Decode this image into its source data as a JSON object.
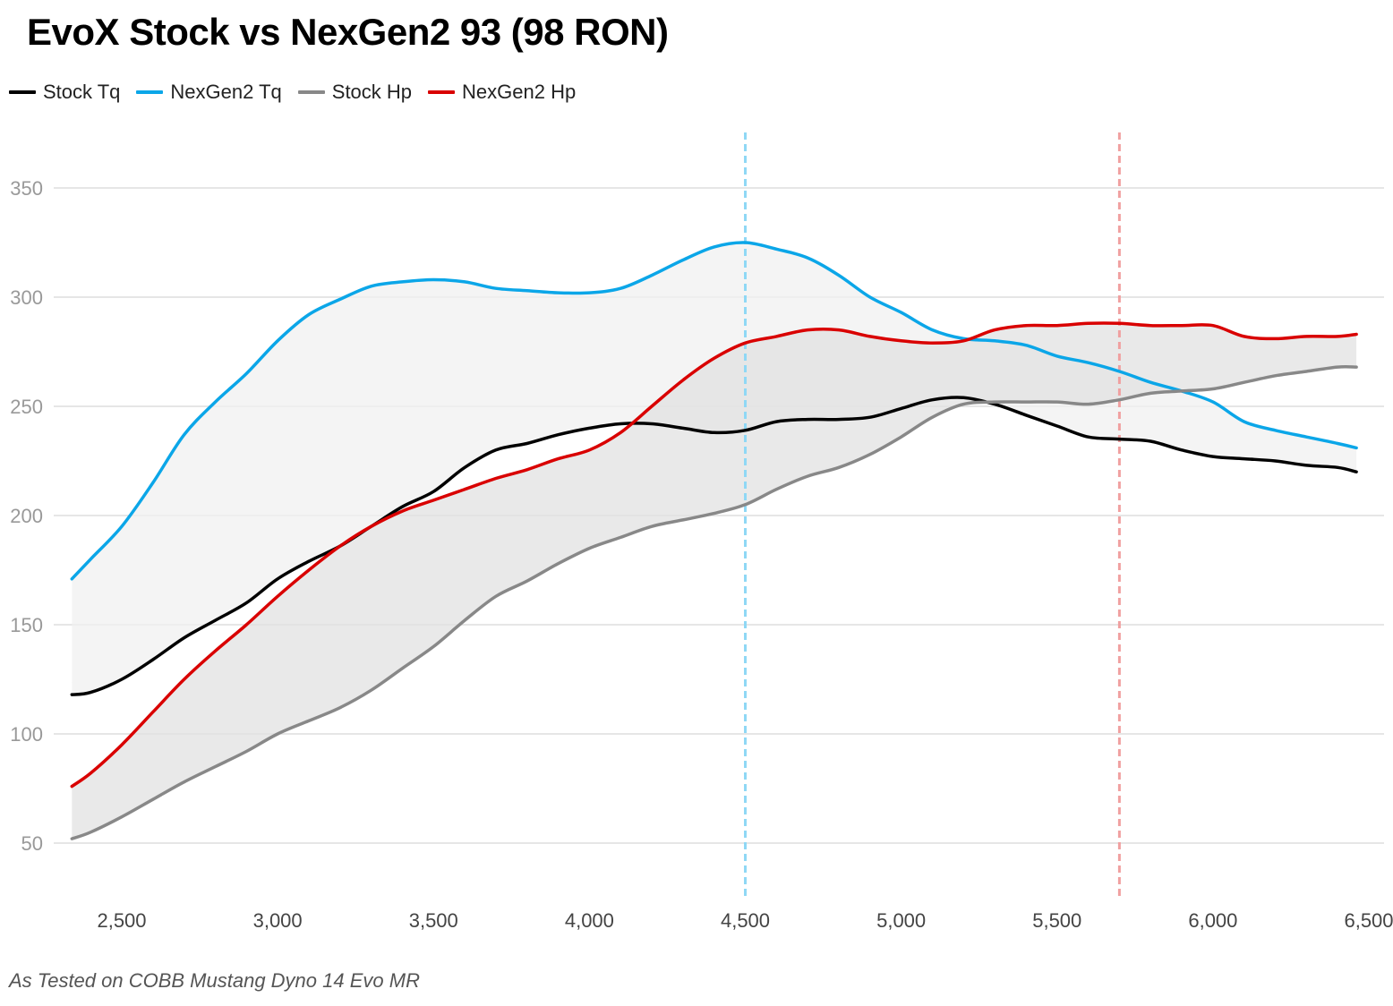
{
  "title": "EvoX Stock vs NexGen2 93 (98 RON)",
  "footer": "As Tested on COBB Mustang Dyno 14 Evo MR",
  "legend": [
    {
      "label": "Stock Tq",
      "color": "#000000"
    },
    {
      "label": "NexGen2 Tq",
      "color": "#0ba6e8"
    },
    {
      "label": "Stock Hp",
      "color": "#888888"
    },
    {
      "label": "NexGen2 Hp",
      "color": "#d90000"
    }
  ],
  "chart_data": {
    "type": "line",
    "title": "EvoX Stock vs NexGen2 93 (98 RON)",
    "xlabel": "",
    "ylabel": "",
    "xlim": [
      2330,
      6500
    ],
    "ylim": [
      20,
      375
    ],
    "x_ticks": [
      2500,
      3000,
      3500,
      4000,
      4500,
      5000,
      5500,
      6000,
      6500
    ],
    "x_tick_labels": [
      "2,500",
      "3,000",
      "3,500",
      "4,000",
      "4,500",
      "5,000",
      "5,500",
      "6,000",
      "6,500"
    ],
    "y_ticks": [
      50,
      100,
      150,
      200,
      250,
      300,
      350
    ],
    "y_tick_labels": [
      "50",
      "100",
      "150",
      "200",
      "250",
      "300",
      "350"
    ],
    "grid": "horizontal",
    "legend_position": "top-left",
    "shaded_bands": [
      {
        "between": [
          "NexGen2 Tq",
          "Stock Tq"
        ],
        "color": "#f0f0f0"
      },
      {
        "between": [
          "NexGen2 Hp",
          "Stock Hp"
        ],
        "color": "#e2e2e2"
      }
    ],
    "reference_lines": [
      {
        "x": 4500,
        "color": "#8fd8f5",
        "style": "dashed"
      },
      {
        "x": 5700,
        "color": "#f0a0a0",
        "style": "dashed"
      }
    ],
    "series": [
      {
        "name": "Stock Tq",
        "color": "#000000",
        "x": [
          2340,
          2400,
          2500,
          2600,
          2700,
          2800,
          2900,
          3000,
          3100,
          3200,
          3300,
          3400,
          3500,
          3600,
          3700,
          3800,
          3900,
          4000,
          4100,
          4200,
          4300,
          4400,
          4500,
          4600,
          4700,
          4800,
          4900,
          5000,
          5100,
          5200,
          5300,
          5400,
          5500,
          5600,
          5700,
          5800,
          5900,
          6000,
          6100,
          6200,
          6300,
          6400,
          6460
        ],
        "y": [
          118,
          119,
          125,
          134,
          144,
          152,
          160,
          171,
          179,
          186,
          195,
          204,
          211,
          222,
          230,
          233,
          237,
          240,
          242,
          242,
          240,
          238,
          239,
          243,
          244,
          244,
          245,
          249,
          253,
          254,
          251,
          246,
          241,
          236,
          235,
          234,
          230,
          227,
          226,
          225,
          223,
          222,
          220
        ]
      },
      {
        "name": "NexGen2 Tq",
        "color": "#0ba6e8",
        "x": [
          2340,
          2400,
          2500,
          2600,
          2700,
          2800,
          2900,
          3000,
          3100,
          3200,
          3300,
          3400,
          3500,
          3600,
          3700,
          3800,
          3900,
          4000,
          4100,
          4200,
          4300,
          4400,
          4500,
          4600,
          4700,
          4800,
          4900,
          5000,
          5100,
          5200,
          5300,
          5400,
          5500,
          5600,
          5700,
          5800,
          5900,
          6000,
          6100,
          6200,
          6300,
          6400,
          6460
        ],
        "y": [
          171,
          180,
          195,
          215,
          237,
          252,
          265,
          280,
          292,
          299,
          305,
          307,
          308,
          307,
          304,
          303,
          302,
          302,
          304,
          310,
          317,
          323,
          325,
          322,
          318,
          310,
          300,
          293,
          285,
          281,
          280,
          278,
          273,
          270,
          266,
          261,
          257,
          252,
          243,
          239,
          236,
          233,
          231
        ]
      },
      {
        "name": "Stock Hp",
        "color": "#888888",
        "x": [
          2340,
          2400,
          2500,
          2600,
          2700,
          2800,
          2900,
          3000,
          3100,
          3200,
          3300,
          3400,
          3500,
          3600,
          3700,
          3800,
          3900,
          4000,
          4100,
          4200,
          4300,
          4400,
          4500,
          4600,
          4700,
          4800,
          4900,
          5000,
          5100,
          5200,
          5300,
          5400,
          5500,
          5600,
          5700,
          5800,
          5900,
          6000,
          6100,
          6200,
          6300,
          6400,
          6460
        ],
        "y": [
          52,
          55,
          62,
          70,
          78,
          85,
          92,
          100,
          106,
          112,
          120,
          130,
          140,
          152,
          163,
          170,
          178,
          185,
          190,
          195,
          198,
          201,
          205,
          212,
          218,
          222,
          228,
          236,
          245,
          251,
          252,
          252,
          252,
          251,
          253,
          256,
          257,
          258,
          261,
          264,
          266,
          268,
          268
        ]
      },
      {
        "name": "NexGen2 Hp",
        "color": "#d90000",
        "x": [
          2340,
          2400,
          2500,
          2600,
          2700,
          2800,
          2900,
          3000,
          3100,
          3200,
          3300,
          3400,
          3500,
          3600,
          3700,
          3800,
          3900,
          4000,
          4100,
          4200,
          4300,
          4400,
          4500,
          4600,
          4700,
          4800,
          4900,
          5000,
          5100,
          5200,
          5300,
          5400,
          5500,
          5600,
          5700,
          5800,
          5900,
          6000,
          6100,
          6200,
          6300,
          6400,
          6460
        ],
        "y": [
          76,
          82,
          95,
          110,
          125,
          138,
          150,
          163,
          175,
          186,
          195,
          202,
          207,
          212,
          217,
          221,
          226,
          230,
          238,
          250,
          262,
          272,
          279,
          282,
          285,
          285,
          282,
          280,
          279,
          280,
          285,
          287,
          287,
          288,
          288,
          287,
          287,
          287,
          282,
          281,
          282,
          282,
          283
        ]
      }
    ]
  }
}
